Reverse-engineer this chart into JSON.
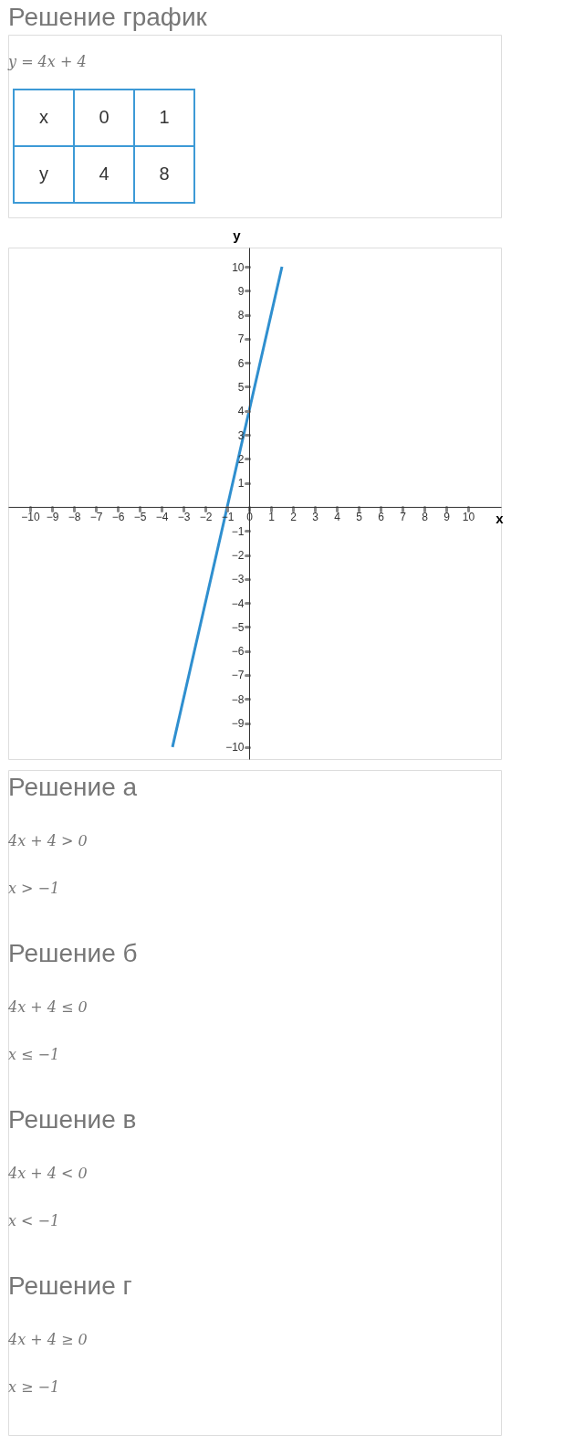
{
  "chart_data": {
    "type": "line",
    "title": "Решение график",
    "xlabel": "x",
    "ylabel": "y",
    "series": [
      {
        "color": "#2f8fcf",
        "x": [
          -3.5,
          1.5
        ],
        "values": [
          -10,
          10
        ]
      }
    ],
    "xlim": [
      -11,
      11.5
    ],
    "ylim": [
      -10.5,
      10.8
    ],
    "xticks": [
      -10,
      -9,
      -8,
      -7,
      -6,
      -5,
      -4,
      -3,
      -2,
      -1,
      0,
      1,
      2,
      3,
      4,
      5,
      6,
      7,
      8,
      9,
      10
    ],
    "yticks": [
      -10,
      -9,
      -8,
      -7,
      -6,
      -5,
      -4,
      -3,
      -2,
      -1,
      1,
      2,
      3,
      4,
      5,
      6,
      7,
      8,
      9,
      10
    ],
    "grid": false,
    "line_style": "solid",
    "annotations": [
      "y = 4x + 4",
      "x",
      "0",
      "1",
      "y",
      "4",
      "8",
      "Решение а",
      "4x + 4 > 0",
      "x > −1",
      "Решение б",
      "4x + 4 ≤ 0",
      "x ≤ −1",
      "Решение в",
      "4x + 4 < 0",
      "x < −1",
      "Решение г",
      "4x + 4 ≥ 0",
      "x ≥ −1"
    ]
  }
}
